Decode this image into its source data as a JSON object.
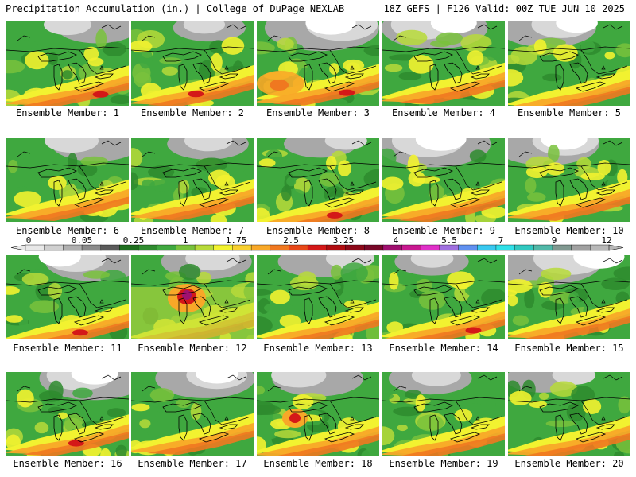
{
  "header": {
    "left": "Precipitation Accumulation (in.) | College of DuPage NEXLAB",
    "right": "18Z GEFS | F126 Valid: 00Z TUE JUN 10 2025"
  },
  "colorbar": {
    "labels": [
      "0",
      "0.05",
      "0.25",
      "1",
      "1.75",
      "2.5",
      "3.25",
      "4",
      "5.5",
      "7",
      "9",
      "12"
    ],
    "colors": [
      "#e8e8e8",
      "#d0d0d0",
      "#b0b0b0",
      "#8c8c8c",
      "#5a5a5a",
      "#1e6e1e",
      "#2e8b2e",
      "#3fa83f",
      "#79c23c",
      "#b7da3a",
      "#f2f230",
      "#f8d030",
      "#f8a828",
      "#f07820",
      "#e84818",
      "#d41818",
      "#b00c10",
      "#8c0818",
      "#780828",
      "#a01070",
      "#c81890",
      "#e030c8",
      "#a070e0",
      "#6090f0",
      "#38c8f0",
      "#30e0e8",
      "#30c8c0",
      "#50b8a8",
      "#809890",
      "#a0a0a0",
      "#b8b8b8"
    ]
  },
  "panels": [
    {
      "label": "Ensemble Member: 1"
    },
    {
      "label": "Ensemble Member: 2"
    },
    {
      "label": "Ensemble Member: 3"
    },
    {
      "label": "Ensemble Member: 4"
    },
    {
      "label": "Ensemble Member: 5"
    },
    {
      "label": "Ensemble Member: 6"
    },
    {
      "label": "Ensemble Member: 7"
    },
    {
      "label": "Ensemble Member: 8"
    },
    {
      "label": "Ensemble Member: 9"
    },
    {
      "label": "Ensemble Member: 10"
    },
    {
      "label": "Ensemble Member: 11"
    },
    {
      "label": "Ensemble Member: 12"
    },
    {
      "label": "Ensemble Member: 13"
    },
    {
      "label": "Ensemble Member: 14"
    },
    {
      "label": "Ensemble Member: 15"
    },
    {
      "label": "Ensemble Member: 16"
    },
    {
      "label": "Ensemble Member: 17"
    },
    {
      "label": "Ensemble Member: 18"
    },
    {
      "label": "Ensemble Member: 19"
    },
    {
      "label": "Ensemble Member: 20"
    }
  ],
  "palette": {
    "gray_light": "#d8d8d8",
    "gray_mid": "#a8a8a8",
    "white": "#ffffff",
    "green_dark": "#2e8b2e",
    "green": "#3fa83f",
    "green_light": "#79c23c",
    "yellow_green": "#b7da3a",
    "yellow": "#f2f230",
    "orange": "#f8a828",
    "orange_red": "#f07820",
    "red": "#d41818",
    "purple": "#a01070"
  }
}
